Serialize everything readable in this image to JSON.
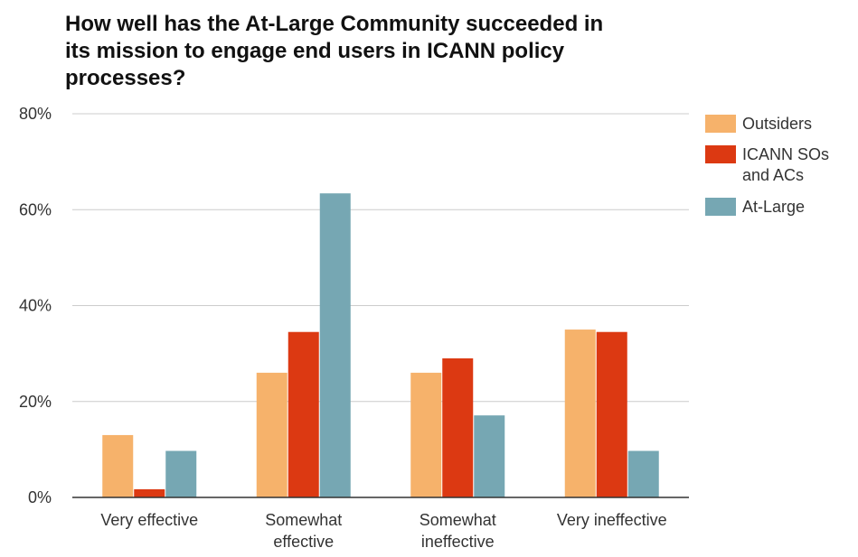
{
  "chart_data": {
    "type": "bar",
    "title_lines": [
      "How well has the At-Large Community succeeded in",
      "its mission to engage end users in ICANN policy",
      "processes?"
    ],
    "categories": [
      [
        "Very effective"
      ],
      [
        "Somewhat",
        "effective"
      ],
      [
        "Somewhat",
        "ineffective"
      ],
      [
        "Very ineffective"
      ]
    ],
    "series": [
      {
        "name_lines": [
          "Outsiders"
        ],
        "color": "#f6b26b",
        "values": [
          13,
          26,
          26,
          35
        ]
      },
      {
        "name_lines": [
          "ICANN SOs",
          "and ACs"
        ],
        "color": "#dc3912",
        "values": [
          1.7,
          34.5,
          29,
          34.5
        ]
      },
      {
        "name_lines": [
          "At-Large"
        ],
        "color": "#76a7b3",
        "values": [
          9.7,
          63.4,
          17.1,
          9.7
        ]
      }
    ],
    "y_ticks": [
      {
        "value": 0,
        "label": "0%"
      },
      {
        "value": 20,
        "label": "20%"
      },
      {
        "value": 40,
        "label": "40%"
      },
      {
        "value": 60,
        "label": "60%"
      },
      {
        "value": 80,
        "label": "80%"
      }
    ],
    "ylim": [
      0,
      80
    ],
    "grid": true,
    "legend_position": "right"
  }
}
